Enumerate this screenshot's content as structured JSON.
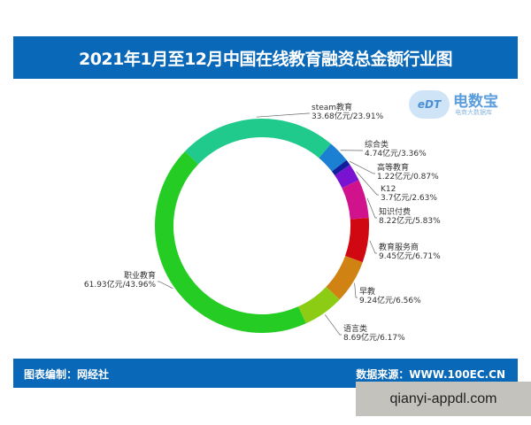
{
  "title": "2021年1月至12月中国在线教育融资总金额行业图",
  "footer": {
    "left": "图表编制：网经社",
    "right": "数据来源：WWW.100EC.CN"
  },
  "logo": {
    "mark": "eDT",
    "name": "电数宝",
    "sub": "电商大数据库"
  },
  "watermark": "qianyi-appdl.com",
  "chart_data": {
    "type": "pie",
    "donut": true,
    "title": "2021年1月至12月中国在线教育融资总金额行业图",
    "unit": "亿元",
    "categories": [
      "steam教育",
      "综合类",
      "高等教育",
      "K12",
      "知识付费",
      "教育服务商",
      "早教",
      "语言类",
      "职业教育"
    ],
    "values": [
      33.68,
      4.74,
      1.22,
      3.7,
      8.22,
      9.45,
      9.24,
      8.69,
      61.93
    ],
    "percents": [
      23.91,
      3.36,
      0.87,
      2.63,
      5.83,
      6.71,
      6.56,
      6.17,
      43.96
    ],
    "labels": [
      [
        "steam教育",
        "33.68亿元/23.91%"
      ],
      [
        "综合类",
        "4.74亿元/3.36%"
      ],
      [
        "高等教育",
        "1.22亿元/0.87%"
      ],
      [
        "K12",
        "3.7亿元/2.63%"
      ],
      [
        "知识付费",
        "8.22亿元/5.83%"
      ],
      [
        "教育服务商",
        "9.45亿元/6.71%"
      ],
      [
        "早教",
        "9.24亿元/6.56%"
      ],
      [
        "语言类",
        "8.69亿元/6.17%"
      ],
      [
        "职业教育",
        "61.93亿元/43.96%"
      ]
    ],
    "colors": [
      "#20c98c",
      "#1b7fd2",
      "#10209c",
      "#7a12d2",
      "#d0128c",
      "#d00812",
      "#d08212",
      "#8ccc14",
      "#24cc24"
    ]
  }
}
